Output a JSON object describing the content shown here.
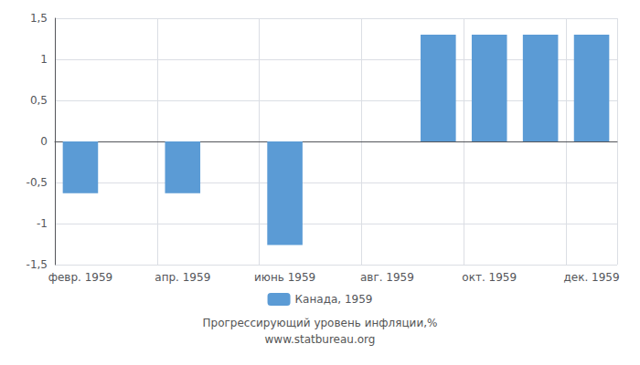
{
  "chart_data": {
    "type": "bar",
    "categories": [
      "февр. 1959",
      null,
      "апр. 1959",
      null,
      "июнь 1959",
      null,
      "авг. 1959",
      null,
      "окт. 1959",
      null,
      "дек. 1959"
    ],
    "series": [
      {
        "name": "Канада, 1959",
        "color": "#5b9bd5",
        "values": [
          -0.63,
          null,
          -0.63,
          null,
          -1.26,
          null,
          null,
          1.3,
          1.3,
          1.3,
          1.3
        ]
      }
    ],
    "ylim": [
      -1.5,
      1.5
    ],
    "yticks": [
      {
        "value": -1.5,
        "label": "-1,5"
      },
      -1,
      {
        "value": -0.5,
        "label": "-0,5"
      },
      0,
      {
        "value": 0.5,
        "label": "0,5"
      },
      1,
      {
        "value": 1.5,
        "label": "1,5"
      }
    ],
    "grid": true,
    "legend": "bottom",
    "annotations": [
      "Прогрессирующий уровень инфляции,%",
      "www.statbureau.org"
    ]
  }
}
